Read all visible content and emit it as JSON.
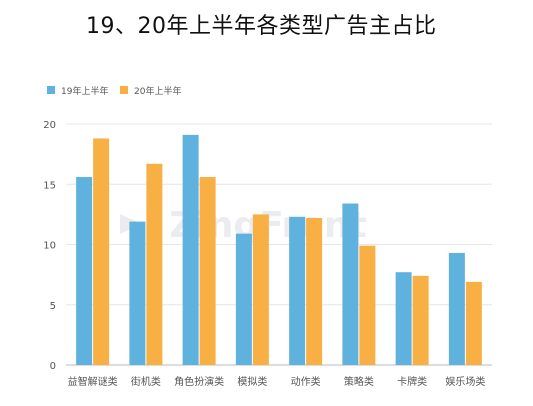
{
  "title": "19、20年上半年各类型广告主占比",
  "watermark": "ZingFront",
  "colors": {
    "series_19": "#5fb2dd",
    "series_20": "#f8b044",
    "grid": "#e6e6e6",
    "axis": "#bbbbbb"
  },
  "chart_data": {
    "type": "bar",
    "title": "19、20年上半年各类型广告主占比",
    "xlabel": "",
    "ylabel": "",
    "ylim": [
      0,
      20
    ],
    "yticks": [
      0,
      5,
      10,
      15,
      20
    ],
    "grid": true,
    "legend": "top-left",
    "categories": [
      "益智解谜类",
      "街机类",
      "角色扮演类",
      "模拟类",
      "动作类",
      "策略类",
      "卡牌类",
      "娱乐场类"
    ],
    "series": [
      {
        "name": "19年上半年",
        "color": "#5fb2dd",
        "values": [
          15.6,
          11.9,
          19.1,
          10.9,
          12.3,
          13.4,
          7.7,
          9.3
        ]
      },
      {
        "name": "20年上半年",
        "color": "#f8b044",
        "values": [
          18.8,
          16.7,
          15.6,
          12.5,
          12.2,
          9.9,
          7.4,
          6.9
        ]
      }
    ]
  }
}
